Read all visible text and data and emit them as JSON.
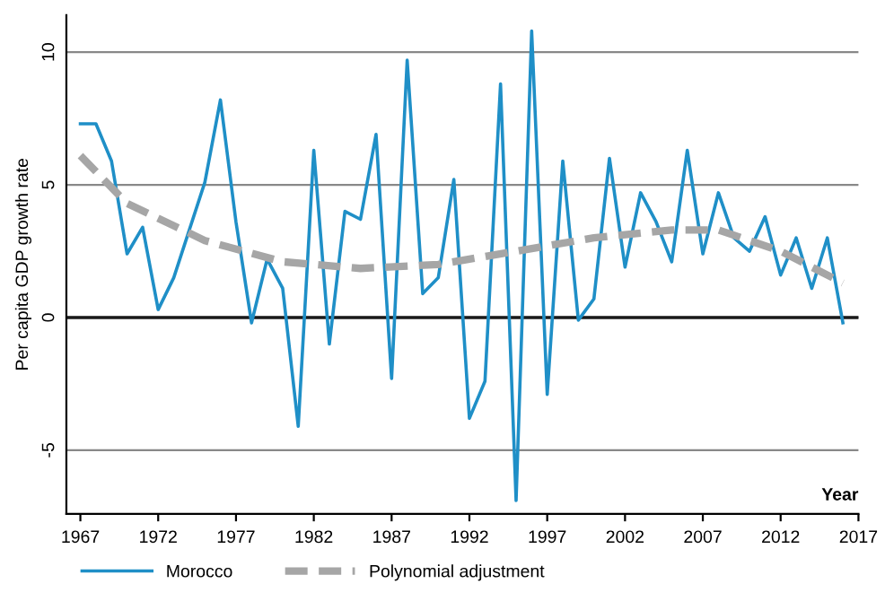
{
  "chart_data": {
    "type": "line",
    "ylabel": "Per capita GDP growth rate",
    "xlabel": "Year",
    "xlim": [
      1966.1,
      2017
    ],
    "xticks": [
      1967,
      1972,
      1977,
      1982,
      1987,
      1992,
      1997,
      2002,
      2007,
      2012,
      2017
    ],
    "ylim": [
      -7.4,
      11.4
    ],
    "yticks": [
      {
        "value": -5,
        "label": "-5"
      },
      0,
      5,
      10
    ],
    "grid": "y",
    "legend": "bottom",
    "ref_lines": [
      {
        "axis": "y",
        "value": 0,
        "label": null,
        "color": "#1a1a1a"
      }
    ],
    "series": [
      {
        "name": "Morocco",
        "color": "#1f8fc7",
        "line_style": "solid",
        "x": [
          1967,
          1968,
          1969,
          1970,
          1971,
          1972,
          1973,
          1974,
          1975,
          1976,
          1977,
          1978,
          1979,
          1980,
          1981,
          1982,
          1983,
          1984,
          1985,
          1986,
          1987,
          1988,
          1989,
          1990,
          1991,
          1992,
          1993,
          1994,
          1995,
          1996,
          1997,
          1998,
          1999,
          2000,
          2001,
          2002,
          2003,
          2004,
          2005,
          2006,
          2007,
          2008,
          2009,
          2010,
          2011,
          2012,
          2013,
          2014,
          2015,
          2016
        ],
        "values": [
          7.3,
          7.3,
          5.9,
          2.4,
          3.4,
          0.3,
          1.5,
          3.3,
          5.1,
          8.2,
          3.6,
          -0.2,
          2.2,
          1.1,
          -4.1,
          6.3,
          -1.0,
          4.0,
          3.7,
          6.9,
          -2.3,
          9.7,
          0.9,
          1.5,
          5.2,
          -3.8,
          -2.4,
          8.8,
          -6.9,
          10.8,
          -2.9,
          5.9,
          -0.1,
          0.7,
          6.0,
          1.9,
          4.7,
          3.6,
          2.1,
          6.3,
          2.4,
          4.7,
          3.0,
          2.5,
          3.8,
          1.6,
          3.0,
          1.1,
          3.0,
          -0.2
        ]
      },
      {
        "name": "Polynomial adjustment",
        "color": "#a6a6a6",
        "line_style": "dashed",
        "x": [
          1967,
          1970,
          1975,
          1980,
          1985,
          1990,
          1995,
          2000,
          2005,
          2008,
          2012,
          2016
        ],
        "values": [
          6.1,
          4.3,
          2.9,
          2.1,
          1.85,
          2.0,
          2.5,
          3.0,
          3.3,
          3.3,
          2.5,
          1.3
        ]
      }
    ]
  }
}
